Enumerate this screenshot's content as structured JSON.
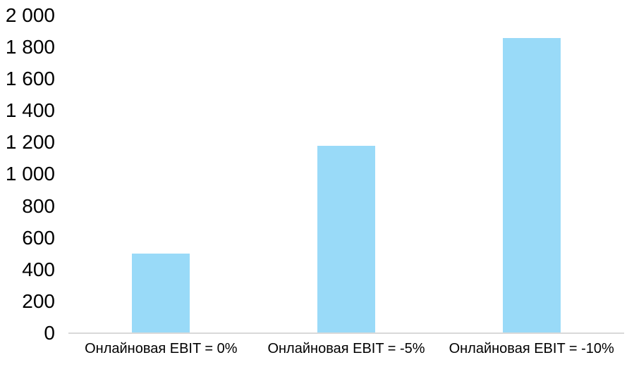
{
  "chart_data": {
    "type": "bar",
    "title": "",
    "xlabel": "",
    "ylabel": "",
    "categories": [
      "Онлайновая EBIT = 0%",
      "Онлайновая EBIT = -5%",
      "Онлайновая EBIT = -10%"
    ],
    "values": [
      500,
      1180,
      1860
    ],
    "ylim": [
      0,
      2000
    ],
    "ytick_step": 200,
    "ytick_labels": [
      "2 000",
      "1 800",
      "1 600",
      "1 400",
      "1 200",
      "1 000",
      "800",
      "600",
      "400",
      "200",
      "0"
    ],
    "bar_color": "#99DAF8",
    "axis_line_color": "#D9D9D9",
    "text_color": "#000000",
    "grid": false,
    "legend": false
  }
}
